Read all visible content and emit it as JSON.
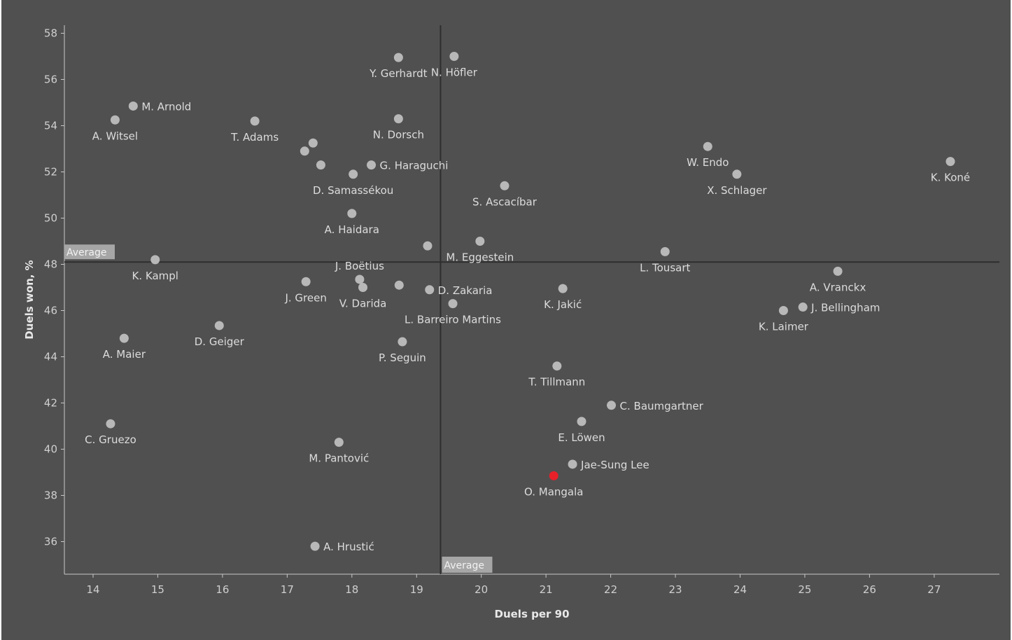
{
  "chart_data": {
    "type": "scatter",
    "xlabel": "Duels per 90",
    "ylabel": "Duels won, %",
    "xlim": [
      13.5,
      28
    ],
    "ylim": [
      34.5,
      58.3
    ],
    "x_ticks": [
      14,
      15,
      16,
      17,
      18,
      19,
      20,
      21,
      22,
      23,
      24,
      25,
      26,
      27
    ],
    "y_ticks": [
      36,
      38,
      40,
      42,
      44,
      46,
      48,
      50,
      52,
      54,
      56,
      58
    ],
    "grid": false,
    "reference_lines": {
      "x_average": 19.37,
      "y_average": 48.1,
      "x_label": "Average",
      "y_label": "Average"
    },
    "colors": {
      "background": "#505050",
      "point": "#b8b8b8",
      "highlight": "#e8202a",
      "reference_line": "#2e2e2e",
      "average_box": "#a6a6a6"
    },
    "points": [
      {
        "label": "Y. Gerhardt",
        "x": 18.72,
        "y": 56.95,
        "pos": "below"
      },
      {
        "label": "N. Höfler",
        "x": 19.58,
        "y": 57.0,
        "pos": "below"
      },
      {
        "label": "M. Arnold",
        "x": 14.62,
        "y": 54.85,
        "pos": "right"
      },
      {
        "label": "A. Witsel",
        "x": 14.34,
        "y": 54.25,
        "pos": "below"
      },
      {
        "label": "T. Adams",
        "x": 16.5,
        "y": 54.2,
        "pos": "below"
      },
      {
        "label": "N. Dorsch",
        "x": 18.72,
        "y": 54.3,
        "pos": "below"
      },
      {
        "label": "",
        "x": 17.4,
        "y": 53.25,
        "pos": "none"
      },
      {
        "label": "",
        "x": 17.27,
        "y": 52.9,
        "pos": "none"
      },
      {
        "label": "",
        "x": 17.52,
        "y": 52.3,
        "pos": "none"
      },
      {
        "label": "G. Haraguchi",
        "x": 18.3,
        "y": 52.3,
        "pos": "right"
      },
      {
        "label": "D. Samassékou",
        "x": 18.02,
        "y": 51.9,
        "pos": "below"
      },
      {
        "label": "S. Ascacíbar",
        "x": 20.36,
        "y": 51.4,
        "pos": "below"
      },
      {
        "label": "A. Haidara",
        "x": 18.0,
        "y": 50.2,
        "pos": "below"
      },
      {
        "label": "",
        "x": 19.17,
        "y": 48.8,
        "pos": "none"
      },
      {
        "label": "M. Eggestein",
        "x": 19.98,
        "y": 49.0,
        "pos": "below"
      },
      {
        "label": "K. Kampl",
        "x": 14.96,
        "y": 48.2,
        "pos": "below"
      },
      {
        "label": "L. Tousart",
        "x": 22.84,
        "y": 48.55,
        "pos": "below"
      },
      {
        "label": "W. Endo",
        "x": 23.5,
        "y": 53.1,
        "pos": "below"
      },
      {
        "label": "X. Schlager",
        "x": 23.95,
        "y": 51.9,
        "pos": "below"
      },
      {
        "label": "K. Koné",
        "x": 27.25,
        "y": 52.45,
        "pos": "below"
      },
      {
        "label": "J. Boëtius",
        "x": 18.12,
        "y": 47.35,
        "pos": "above"
      },
      {
        "label": "V. Darida",
        "x": 18.17,
        "y": 47.0,
        "pos": "below"
      },
      {
        "label": "J. Green",
        "x": 17.29,
        "y": 47.25,
        "pos": "below"
      },
      {
        "label": "",
        "x": 18.73,
        "y": 47.1,
        "pos": "none"
      },
      {
        "label": "D. Zakaria",
        "x": 19.2,
        "y": 46.9,
        "pos": "right"
      },
      {
        "label": "L. Barreiro Martins",
        "x": 19.56,
        "y": 46.3,
        "pos": "below"
      },
      {
        "label": "K. Jakić",
        "x": 21.26,
        "y": 46.95,
        "pos": "below"
      },
      {
        "label": "A. Vranckx",
        "x": 25.51,
        "y": 47.7,
        "pos": "below"
      },
      {
        "label": "J. Bellingham",
        "x": 24.97,
        "y": 46.15,
        "pos": "right"
      },
      {
        "label": "K. Laimer",
        "x": 24.67,
        "y": 46.0,
        "pos": "below"
      },
      {
        "label": "A. Maier",
        "x": 14.48,
        "y": 44.8,
        "pos": "below"
      },
      {
        "label": "D. Geiger",
        "x": 15.95,
        "y": 45.35,
        "pos": "below"
      },
      {
        "label": "P. Seguin",
        "x": 18.78,
        "y": 44.65,
        "pos": "below"
      },
      {
        "label": "T. Tillmann",
        "x": 21.17,
        "y": 43.6,
        "pos": "below"
      },
      {
        "label": "C. Baumgartner",
        "x": 22.01,
        "y": 41.9,
        "pos": "right"
      },
      {
        "label": "E. Löwen",
        "x": 21.55,
        "y": 41.2,
        "pos": "below"
      },
      {
        "label": "C. Gruezo",
        "x": 14.27,
        "y": 41.1,
        "pos": "below"
      },
      {
        "label": "M. Pantović",
        "x": 17.8,
        "y": 40.3,
        "pos": "below"
      },
      {
        "label": "Jae-Sung Lee",
        "x": 21.41,
        "y": 39.35,
        "pos": "right"
      },
      {
        "label": "O. Mangala",
        "x": 21.12,
        "y": 38.85,
        "pos": "below",
        "highlight": true
      },
      {
        "label": "A. Hrustić",
        "x": 17.43,
        "y": 35.8,
        "pos": "right"
      }
    ]
  }
}
